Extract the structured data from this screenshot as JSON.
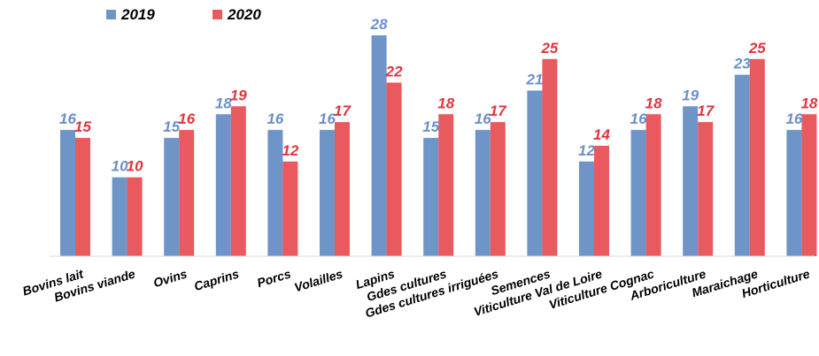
{
  "chart_data": {
    "type": "bar",
    "categories": [
      "Bovins lait",
      "Bovins viande",
      "Ovins",
      "Caprins",
      "Porcs",
      "Volailles",
      "Lapins",
      "Gdes cultures",
      "Gdes cultures irriguées",
      "Semences",
      "Viticulture Val de Loire",
      "Viticulture Cognac",
      "Arboriculture",
      "Maraichage",
      "Horticulture"
    ],
    "series": [
      {
        "name": "2019",
        "color": "#6f94c8",
        "values": [
          16,
          10,
          15,
          18,
          16,
          16,
          28,
          15,
          16,
          21,
          12,
          16,
          19,
          23,
          16
        ]
      },
      {
        "name": "2020",
        "color": "#e95a5e",
        "values": [
          15,
          10,
          16,
          19,
          12,
          17,
          22,
          18,
          17,
          25,
          14,
          18,
          17,
          25,
          18
        ]
      }
    ],
    "label_colors": {
      "2019": "#6b8fc9",
      "2020": "#e0353c"
    },
    "ylim": [
      0,
      28
    ],
    "grid": false,
    "legend_position": "top-left",
    "data_labels": true
  }
}
